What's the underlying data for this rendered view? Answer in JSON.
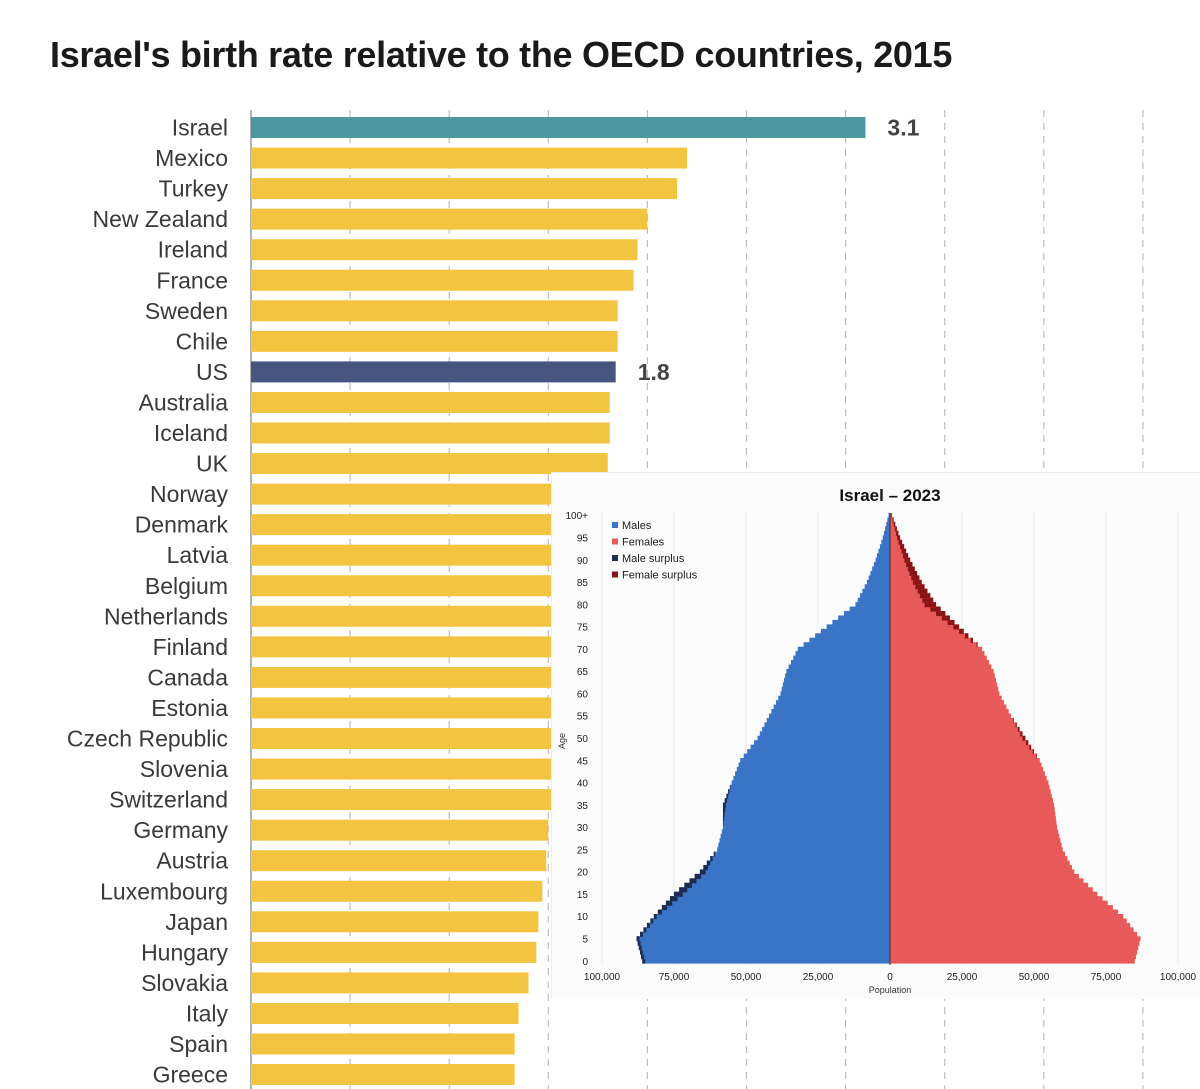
{
  "chart_data": [
    {
      "type": "bar",
      "orientation": "horizontal",
      "title": "Israel's birth rate relative to the OECD countries, 2015",
      "categories": [
        "Israel",
        "Mexico",
        "Turkey",
        "New Zealand",
        "Ireland",
        "France",
        "Sweden",
        "Chile",
        "US",
        "Australia",
        "Iceland",
        "UK",
        "Norway",
        "Denmark",
        "Latvia",
        "Belgium",
        "Netherlands",
        "Finland",
        "Canada",
        "Estonia",
        "Czech Republic",
        "Slovenia",
        "Switzerland",
        "Germany",
        "Austria",
        "Luxembourg",
        "Japan",
        "Hungary",
        "Slovakia",
        "Italy",
        "Spain",
        "Greece"
      ],
      "values": [
        3.1,
        2.2,
        2.15,
        2.0,
        1.95,
        1.93,
        1.85,
        1.85,
        1.84,
        1.81,
        1.81,
        1.8,
        1.72,
        1.71,
        1.7,
        1.7,
        1.66,
        1.65,
        1.6,
        1.58,
        1.57,
        1.57,
        1.54,
        1.5,
        1.49,
        1.47,
        1.45,
        1.44,
        1.4,
        1.35,
        1.33,
        1.33
      ],
      "data_labels": [
        {
          "category": "Israel",
          "label": "3.1"
        },
        {
          "category": "US",
          "label": "1.8"
        }
      ],
      "xlim": [
        0,
        4.5
      ],
      "grid": "vertical-dashed",
      "colors": {
        "default": "#f3c43f",
        "Israel": "#4f97a0",
        "US": "#46547e"
      }
    },
    {
      "type": "bar",
      "subtype": "population-pyramid",
      "title": "Israel – 2023",
      "xlabel": "Population",
      "ylabel": "Age",
      "x_ticks": [
        "100,000",
        "75,000",
        "50,000",
        "25,000",
        "0",
        "25,000",
        "50,000",
        "75,000",
        "100,000"
      ],
      "y_ticks": [
        "0",
        "5",
        "10",
        "15",
        "20",
        "25",
        "30",
        "35",
        "40",
        "45",
        "50",
        "55",
        "60",
        "65",
        "70",
        "75",
        "80",
        "85",
        "90",
        "95",
        "100+"
      ],
      "xlim": [
        -100000,
        100000
      ],
      "legend": [
        {
          "name": "Males",
          "color": "#3a74c6"
        },
        {
          "name": "Females",
          "color": "#e85a59"
        },
        {
          "name": "Male surplus",
          "color": "#1d2b50"
        },
        {
          "name": "Female surplus",
          "color": "#8b1414"
        }
      ],
      "legend_position": "top-left",
      "ages": [
        0,
        5,
        10,
        15,
        20,
        25,
        30,
        35,
        40,
        45,
        50,
        55,
        60,
        65,
        70,
        75,
        80,
        85,
        90,
        95,
        100
      ],
      "males": [
        86000,
        88000,
        82000,
        75000,
        66000,
        60000,
        58000,
        58000,
        55000,
        52000,
        46000,
        42000,
        38000,
        36000,
        32000,
        22000,
        12000,
        8000,
        5000,
        2500,
        500
      ],
      "females": [
        85000,
        87000,
        81000,
        72000,
        64000,
        60000,
        58000,
        57000,
        55000,
        52000,
        47000,
        42000,
        38000,
        36000,
        32000,
        24000,
        16000,
        11000,
        7000,
        3500,
        700
      ]
    }
  ]
}
